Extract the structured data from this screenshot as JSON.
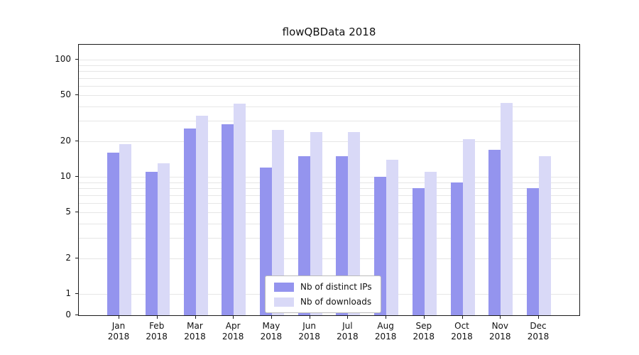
{
  "title": "flowQBData 2018",
  "chart_data": {
    "type": "bar",
    "title": "flowQBData 2018",
    "categories": [
      "Jan",
      "Feb",
      "Mar",
      "Apr",
      "May",
      "Jun",
      "Jul",
      "Aug",
      "Sep",
      "Oct",
      "Nov",
      "Dec"
    ],
    "year": "2018",
    "series": [
      {
        "name": "Nb of distinct IPs",
        "color": "#9494ee",
        "values": [
          16,
          11,
          26,
          28,
          12,
          15,
          15,
          10,
          8,
          9,
          17,
          8
        ]
      },
      {
        "name": "Nb of downloads",
        "color": "#d9d9f7",
        "values": [
          19,
          13,
          33,
          42,
          25,
          24,
          24,
          14,
          11,
          21,
          43,
          15
        ]
      }
    ],
    "yscale": "symlog",
    "yticks": [
      0,
      1,
      2,
      5,
      10,
      20,
      50,
      100
    ],
    "gridlines": [
      1,
      2,
      3,
      4,
      5,
      6,
      7,
      8,
      9,
      10,
      20,
      30,
      40,
      50,
      60,
      70,
      80,
      90,
      100
    ],
    "ylim": [
      0,
      135
    ],
    "xlabel": "",
    "ylabel": "",
    "grid": true,
    "legend_position": "lower center",
    "colors": {
      "grid": "#e6e6e6",
      "axis": "#1a1a1a",
      "text": "#111111",
      "background": "#ffffff"
    }
  }
}
